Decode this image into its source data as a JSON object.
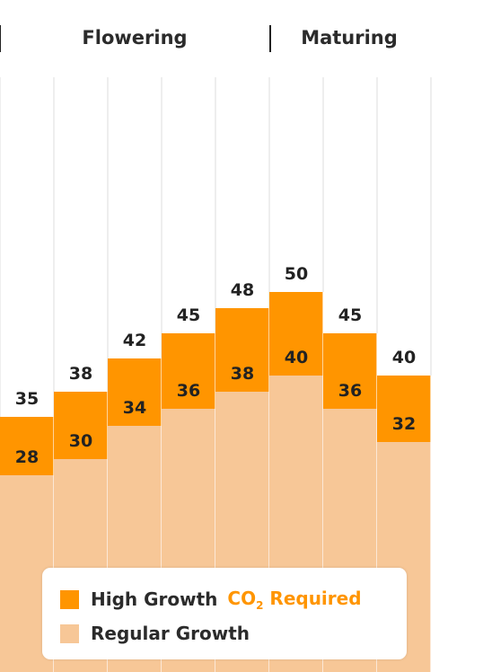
{
  "chart_data": {
    "type": "bar",
    "stacked": true,
    "phases": [
      {
        "label": "Flowering"
      },
      {
        "label": "Maturing"
      }
    ],
    "categories": [
      "",
      "",
      "",
      "",
      "",
      "",
      "",
      ""
    ],
    "series": [
      {
        "name": "Regular Growth",
        "values": [
          28,
          30,
          34,
          36,
          38,
          40,
          36,
          32
        ]
      },
      {
        "name": "High Growth",
        "totals": [
          35,
          38,
          42,
          45,
          48,
          50,
          45,
          40
        ]
      }
    ],
    "colors": {
      "high": "#FF9500",
      "regular": "#F7C797",
      "grid": "#dddddd",
      "divider": "#222222",
      "note": "#FF9500"
    },
    "grid": true
  },
  "legend": {
    "items": [
      {
        "label": "High Growth",
        "color": "#FF9500"
      },
      {
        "label": "Regular Growth",
        "color": "#F7C797"
      }
    ],
    "note": {
      "main": "CO",
      "sub": "2",
      "rest": " Required"
    }
  }
}
